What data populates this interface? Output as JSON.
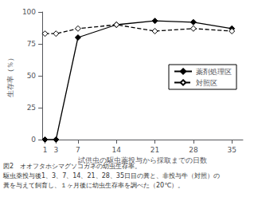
{
  "chart_data": {
    "type": "line",
    "x": [
      1,
      3,
      7,
      14,
      21,
      28,
      35
    ],
    "series": [
      {
        "name": "薬剤処理区",
        "color": "#000000",
        "line_style": "solid",
        "marker": "filled_diamond",
        "values": [
          0,
          0,
          80,
          90,
          93,
          92,
          87
        ]
      },
      {
        "name": "対照区",
        "color": "#000000",
        "line_style": "dashed",
        "marker": "open_diamond",
        "values": [
          83,
          83,
          87,
          90,
          85,
          87,
          85
        ]
      }
    ],
    "xlabel": "試供虫の駆虫薬投与から採取までの日数",
    "ylabel": "生存率（％）",
    "xlim": [
      0.5,
      37
    ],
    "xticks": [
      1,
      3,
      7,
      14,
      21,
      28,
      35
    ],
    "ylim": [
      0,
      100
    ],
    "yticks": [
      0,
      25,
      50,
      75,
      100
    ],
    "grid": false,
    "legend": "right",
    "annotations": [
      "図2　オオフタホシマグソコガネの幼虫生存率。",
      "駆虫薬投与後1、3、7、14、21、28、35日目の糞と、非投与牛（対照）の",
      "糞を与えて飼育し、１ヶ月後に幼虫生存率を調べた（20℃）。"
    ]
  }
}
